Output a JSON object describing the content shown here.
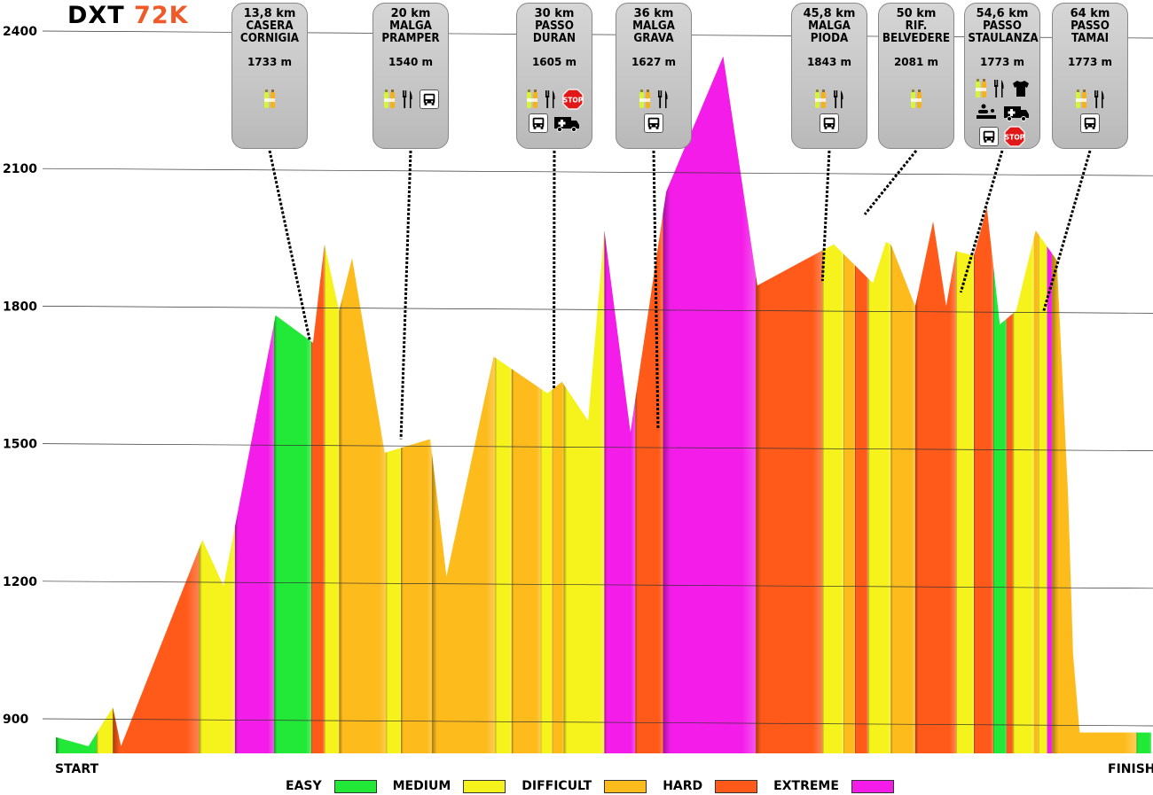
{
  "title": {
    "prefix": "DXT ",
    "accent": "72K"
  },
  "chart_data": {
    "type": "area",
    "y_ticks": [
      "2400",
      "2100",
      "1800",
      "1500",
      "1200",
      "900"
    ],
    "ylim": [
      820,
      2450
    ],
    "x_labels": {
      "start": "START",
      "finish": "FINISH"
    },
    "legend": [
      {
        "name": "EASY",
        "color": "#22e838"
      },
      {
        "name": "MEDIUM",
        "color": "#f5f21c"
      },
      {
        "name": "DIFFICULT",
        "color": "#fdbc1c"
      },
      {
        "name": "HARD",
        "color": "#ff5a1a"
      },
      {
        "name": "EXTREME",
        "color": "#f41ce8"
      }
    ],
    "profile_km": [
      0,
      2,
      3.5,
      4,
      9,
      10.3,
      13.5,
      15.8,
      16.5,
      17.4,
      18.2,
      20.2,
      23,
      24,
      26.9,
      30.2,
      31.1,
      32.7,
      33.7,
      35.3,
      37.5,
      41,
      43.1,
      47.8,
      50.2,
      51,
      51.3,
      52.8,
      53.9,
      54.7,
      55.3,
      56.4,
      57.2,
      58,
      59,
      60.2,
      61.5,
      62.2,
      62.5,
      62.9,
      66,
      67.3
    ],
    "profile_elev": [
      860,
      840,
      925,
      840,
      1290,
      1190,
      1780,
      1720,
      1935,
      1790,
      1905,
      1480,
      1510,
      1210,
      1690,
      1610,
      1635,
      1550,
      1965,
      1525,
      2050,
      2345,
      1845,
      1935,
      1850,
      1940,
      1935,
      1800,
      1985,
      1800,
      1920,
      1910,
      2015,
      1760,
      1790,
      1965,
      1900,
      1380,
      1040,
      870,
      870,
      870
    ],
    "segments": [
      {
        "from": 0,
        "to": 3,
        "level": "EASY"
      },
      {
        "from": 2.5,
        "to": 4,
        "level": "MEDIUM"
      },
      {
        "from": 3.5,
        "to": 8.8,
        "level": "HARD"
      },
      {
        "from": 8.8,
        "to": 11,
        "level": "MEDIUM"
      },
      {
        "from": 11,
        "to": 13.4,
        "level": "EXTREME"
      },
      {
        "from": 13.4,
        "to": 15.7,
        "level": "EASY"
      },
      {
        "from": 15.7,
        "to": 16.5,
        "level": "HARD"
      },
      {
        "from": 16.5,
        "to": 17.4,
        "level": "MEDIUM"
      },
      {
        "from": 17.4,
        "to": 20.3,
        "level": "DIFFICULT"
      },
      {
        "from": 20.3,
        "to": 21.2,
        "level": "MEDIUM"
      },
      {
        "from": 21.2,
        "to": 23.1,
        "level": "DIFFICULT"
      },
      {
        "from": 23.1,
        "to": 27,
        "level": "DIFFICULT"
      },
      {
        "from": 27,
        "to": 28,
        "level": "MEDIUM"
      },
      {
        "from": 28,
        "to": 29.8,
        "level": "DIFFICULT"
      },
      {
        "from": 29.8,
        "to": 30.5,
        "level": "MEDIUM"
      },
      {
        "from": 30.5,
        "to": 31.2,
        "level": "DIFFICULT"
      },
      {
        "from": 31.2,
        "to": 33.7,
        "level": "MEDIUM"
      },
      {
        "from": 33.7,
        "to": 35.6,
        "level": "EXTREME"
      },
      {
        "from": 35.6,
        "to": 37.3,
        "level": "HARD"
      },
      {
        "from": 37.3,
        "to": 43,
        "level": "EXTREME"
      },
      {
        "from": 43,
        "to": 47.1,
        "level": "HARD"
      },
      {
        "from": 47.1,
        "to": 48.4,
        "level": "MEDIUM"
      },
      {
        "from": 48.4,
        "to": 49.1,
        "level": "DIFFICULT"
      },
      {
        "from": 49.1,
        "to": 49.9,
        "level": "HARD"
      },
      {
        "from": 49.9,
        "to": 51.3,
        "level": "MEDIUM"
      },
      {
        "from": 51.3,
        "to": 52.8,
        "level": "DIFFICULT"
      },
      {
        "from": 52.8,
        "to": 55.3,
        "level": "HARD"
      },
      {
        "from": 55.3,
        "to": 56.4,
        "level": "MEDIUM"
      },
      {
        "from": 56.4,
        "to": 57.6,
        "level": "HARD"
      },
      {
        "from": 57.6,
        "to": 58.4,
        "level": "EASY"
      },
      {
        "from": 58.4,
        "to": 58.8,
        "level": "HARD"
      },
      {
        "from": 58.8,
        "to": 60.1,
        "level": "MEDIUM"
      },
      {
        "from": 60.1,
        "to": 60.4,
        "level": "DIFFICULT"
      },
      {
        "from": 60.4,
        "to": 60.9,
        "level": "MEDIUM"
      },
      {
        "from": 60.9,
        "to": 61.2,
        "level": "EXTREME"
      },
      {
        "from": 61.2,
        "to": 66.4,
        "level": "DIFFICULT"
      },
      {
        "from": 66.4,
        "to": 67.3,
        "level": "EASY"
      }
    ],
    "aid_stations": [
      {
        "km_label": "13,8 km",
        "name": [
          "CASERA",
          "CORNIGIA"
        ],
        "alt": "1733 m",
        "km": 15.6,
        "elev": 1725,
        "icons": [
          [
            "bottles"
          ]
        ]
      },
      {
        "km_label": "20 km",
        "name": [
          "MALGA",
          "PRAMPER"
        ],
        "alt": "1540 m",
        "km": 21.2,
        "elev": 1510,
        "icons": [
          [
            "bottles",
            "fork",
            "bus"
          ]
        ]
      },
      {
        "km_label": "30 km",
        "name": [
          "PASSO",
          "DURAN"
        ],
        "alt": "1605 m",
        "km": 30.6,
        "elev": 1620,
        "icons": [
          [
            "bottles",
            "fork",
            "stop"
          ],
          [
            "bus",
            "ambulance"
          ]
        ]
      },
      {
        "km_label": "36 km",
        "name": [
          "MALGA",
          "GRAVA"
        ],
        "alt": "1627 m",
        "km": 37.0,
        "elev": 1530,
        "icons": [
          [
            "bottles",
            "fork"
          ],
          [
            "bus"
          ]
        ]
      },
      {
        "km_label": "45,8 km",
        "name": [
          "MALGA",
          "PIODA"
        ],
        "alt": "1843 m",
        "km": 47.1,
        "elev": 1855,
        "icons": [
          [
            "bottles",
            "fork"
          ],
          [
            "bus"
          ]
        ]
      },
      {
        "km_label": "50 km",
        "name": [
          "RIF.",
          "BELVEDERE"
        ],
        "alt": "2081 m",
        "km": 49.7,
        "elev": 2000,
        "icons": [
          [
            "bottles"
          ]
        ]
      },
      {
        "km_label": "54,6 km",
        "name": [
          "PASSO",
          "STAULANZA"
        ],
        "alt": "1773 m",
        "km": 55.6,
        "elev": 1830,
        "icons": [
          [
            "bottles",
            "fork",
            "shirt"
          ],
          [
            "massage",
            "ambulance"
          ],
          [
            "bus",
            "stop"
          ]
        ]
      },
      {
        "km_label": "64 km",
        "name": [
          "PASSO",
          "TAMAI"
        ],
        "alt": "1773 m",
        "km": 60.7,
        "elev": 1790,
        "icons": [
          [
            "bottles",
            "fork"
          ],
          [
            "bus"
          ]
        ]
      }
    ]
  }
}
